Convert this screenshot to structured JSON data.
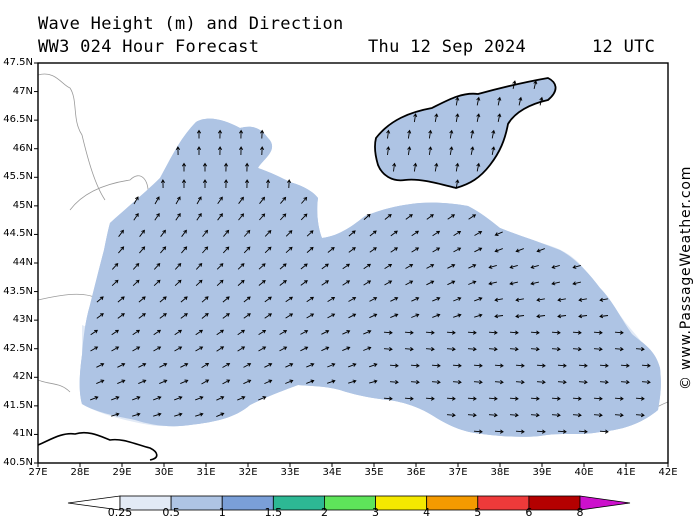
{
  "header": {
    "line1": "Wave Height (m) and Direction",
    "model": "WW3 024 Hour Forecast",
    "date": "Thu 12 Sep 2024",
    "time": "12 UTC"
  },
  "credit": "© www.PassageWeather.com",
  "map": {
    "region": "Black Sea",
    "lat_labels": [
      "47.5N",
      "47N",
      "46.5N",
      "46N",
      "45.5N",
      "45N",
      "44.5N",
      "44N",
      "43.5N",
      "43N",
      "42.5N",
      "42N",
      "41.5N",
      "41N",
      "40.5N"
    ],
    "lon_labels": [
      "27E",
      "28E",
      "29E",
      "30E",
      "31E",
      "32E",
      "33E",
      "34E",
      "35E",
      "36E",
      "37E",
      "38E",
      "39E",
      "40E",
      "41E",
      "42E"
    ],
    "lat_range": [
      40.5,
      47.5
    ],
    "lon_range": [
      27,
      42
    ],
    "grid": false
  },
  "colors": {
    "land": "#ffffff",
    "band_0_25": "#e2eaf6",
    "band_0_5": "#aec4e4",
    "band_1": "#7a9fd8",
    "coast": "#000000",
    "border": "#9a9a9a"
  },
  "legend": {
    "labels": [
      "0.25",
      "0.5",
      "1",
      "1.5",
      "2",
      "3",
      "4",
      "5",
      "6",
      "8"
    ],
    "colors": [
      "#e2eaf6",
      "#aec4e4",
      "#7a9fd8",
      "#2db894",
      "#5ee45a",
      "#f4e800",
      "#f49a00",
      "#ee3a3a",
      "#b40000",
      "#cc10cc"
    ]
  }
}
